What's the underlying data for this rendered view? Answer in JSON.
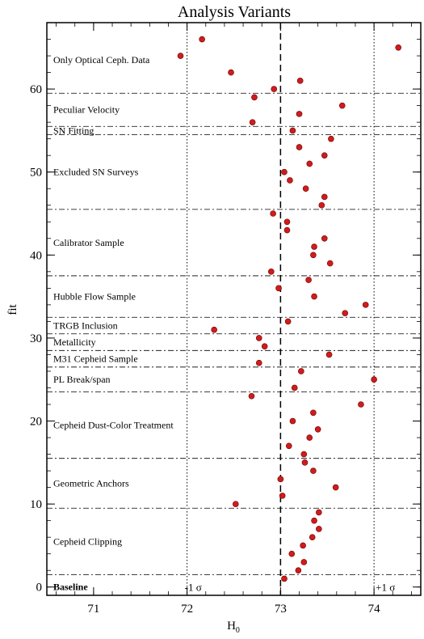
{
  "chart_data": {
    "type": "scatter",
    "title": "Analysis Variants",
    "xlabel": "H",
    "xlabel_sub": "0",
    "ylabel": "fit",
    "xlim": [
      70.5,
      74.5
    ],
    "ylim": [
      -1,
      68
    ],
    "xticks": [
      71,
      72,
      73,
      74
    ],
    "yticks": [
      0,
      10,
      20,
      30,
      40,
      50,
      60
    ],
    "marker_color": "#d01c1c",
    "grid": false,
    "vlines": [
      {
        "x": 73.0,
        "style": "dashed",
        "label": ""
      },
      {
        "x": 72.0,
        "style": "dotted",
        "label": "-1 σ"
      },
      {
        "x": 74.0,
        "style": "dotted",
        "label": "+1 σ"
      }
    ],
    "group_separators_y": [
      1.5,
      9.5,
      15.5,
      23.5,
      26.5,
      28.5,
      30.5,
      32.5,
      37.5,
      45.5,
      54.5,
      55.5,
      59.5
    ],
    "group_labels": [
      {
        "label": "Baseline",
        "y": 0,
        "bold": true
      },
      {
        "label": "Cepheid Clipping",
        "y": 5.5
      },
      {
        "label": "Geometric Anchors",
        "y": 12.5
      },
      {
        "label": "Cepheid Dust-Color Treatment",
        "y": 19.5
      },
      {
        "label": "PL Break/span",
        "y": 25
      },
      {
        "label": "M31 Cepheid Sample",
        "y": 27.5
      },
      {
        "label": "Metallicity",
        "y": 29.5
      },
      {
        "label": "TRGB Inclusion",
        "y": 31.5
      },
      {
        "label": "Hubble Flow Sample",
        "y": 35
      },
      {
        "label": "Calibrator Sample",
        "y": 41.5
      },
      {
        "label": "Excluded SN Surveys",
        "y": 50
      },
      {
        "label": "SN Fitting",
        "y": 55
      },
      {
        "label": "Peculiar Velocity",
        "y": 57.5
      },
      {
        "label": "Only Optical Ceph. Data",
        "y": 63.5
      }
    ],
    "points": [
      {
        "x": 73.04,
        "y": 1
      },
      {
        "x": 73.19,
        "y": 2
      },
      {
        "x": 73.25,
        "y": 3
      },
      {
        "x": 73.12,
        "y": 4
      },
      {
        "x": 73.24,
        "y": 5
      },
      {
        "x": 73.34,
        "y": 6
      },
      {
        "x": 73.41,
        "y": 7
      },
      {
        "x": 73.36,
        "y": 8
      },
      {
        "x": 73.41,
        "y": 9
      },
      {
        "x": 72.52,
        "y": 10
      },
      {
        "x": 73.02,
        "y": 11
      },
      {
        "x": 73.59,
        "y": 12
      },
      {
        "x": 73.0,
        "y": 13
      },
      {
        "x": 73.35,
        "y": 14
      },
      {
        "x": 73.26,
        "y": 15
      },
      {
        "x": 73.25,
        "y": 16
      },
      {
        "x": 73.09,
        "y": 17
      },
      {
        "x": 73.31,
        "y": 18
      },
      {
        "x": 73.4,
        "y": 19
      },
      {
        "x": 73.13,
        "y": 20
      },
      {
        "x": 73.35,
        "y": 21
      },
      {
        "x": 73.86,
        "y": 22
      },
      {
        "x": 72.69,
        "y": 23
      },
      {
        "x": 73.15,
        "y": 24
      },
      {
        "x": 74.0,
        "y": 25
      },
      {
        "x": 73.22,
        "y": 26
      },
      {
        "x": 72.77,
        "y": 27
      },
      {
        "x": 73.52,
        "y": 28
      },
      {
        "x": 72.83,
        "y": 29
      },
      {
        "x": 72.77,
        "y": 30
      },
      {
        "x": 72.29,
        "y": 31
      },
      {
        "x": 73.08,
        "y": 32
      },
      {
        "x": 73.69,
        "y": 33
      },
      {
        "x": 73.91,
        "y": 34
      },
      {
        "x": 73.36,
        "y": 35
      },
      {
        "x": 72.98,
        "y": 36
      },
      {
        "x": 73.3,
        "y": 37
      },
      {
        "x": 72.9,
        "y": 38
      },
      {
        "x": 73.53,
        "y": 39
      },
      {
        "x": 73.35,
        "y": 40
      },
      {
        "x": 73.36,
        "y": 41
      },
      {
        "x": 73.47,
        "y": 42
      },
      {
        "x": 73.07,
        "y": 43
      },
      {
        "x": 73.07,
        "y": 44
      },
      {
        "x": 72.92,
        "y": 45
      },
      {
        "x": 73.44,
        "y": 46
      },
      {
        "x": 73.47,
        "y": 47
      },
      {
        "x": 73.27,
        "y": 48
      },
      {
        "x": 73.1,
        "y": 49
      },
      {
        "x": 73.04,
        "y": 50
      },
      {
        "x": 73.31,
        "y": 51
      },
      {
        "x": 73.47,
        "y": 52
      },
      {
        "x": 73.2,
        "y": 53
      },
      {
        "x": 73.54,
        "y": 54
      },
      {
        "x": 73.13,
        "y": 55
      },
      {
        "x": 72.7,
        "y": 56
      },
      {
        "x": 73.2,
        "y": 57
      },
      {
        "x": 73.66,
        "y": 58
      },
      {
        "x": 72.72,
        "y": 59
      },
      {
        "x": 72.93,
        "y": 60
      },
      {
        "x": 73.21,
        "y": 61
      },
      {
        "x": 72.47,
        "y": 62
      },
      {
        "x": 71.93,
        "y": 64
      },
      {
        "x": 74.26,
        "y": 65
      },
      {
        "x": 72.16,
        "y": 66
      }
    ]
  }
}
